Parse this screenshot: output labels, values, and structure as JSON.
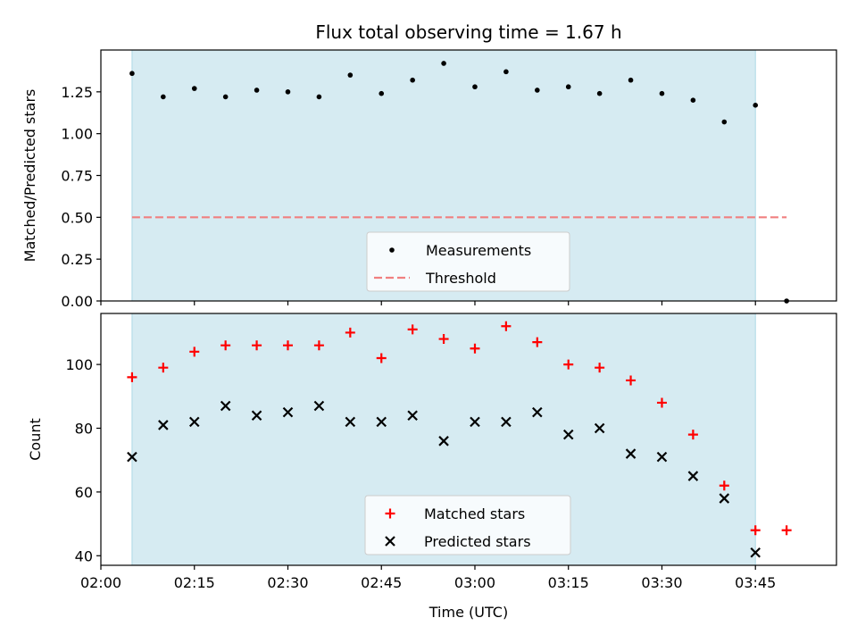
{
  "chart_data": {
    "title": "Flux total observing time = 1.67 h",
    "xlabel": "Time (UTC)",
    "x_ticks": [
      "02:00",
      "02:15",
      "02:30",
      "02:45",
      "03:00",
      "03:15",
      "03:30",
      "03:45"
    ],
    "x_tick_minutes": [
      0,
      15,
      30,
      45,
      60,
      75,
      90,
      105
    ],
    "xlim_minutes": [
      0,
      118
    ],
    "shaded_interval_minutes": [
      5,
      105
    ],
    "colors": {
      "shade": "#add8e6",
      "threshold": "#f08080",
      "matched": "#ff0000",
      "predicted": "#000000",
      "measurement": "#000000"
    },
    "panels": [
      {
        "type": "scatter",
        "ylabel": "Matched/Predicted stars",
        "ylim": [
          0,
          1.5
        ],
        "y_ticks": [
          "0.00",
          "0.25",
          "0.50",
          "0.75",
          "1.00",
          "1.25"
        ],
        "y_tick_values": [
          0,
          0.25,
          0.5,
          0.75,
          1.0,
          1.25
        ],
        "threshold": {
          "value": 0.5,
          "x_range_minutes": [
            5,
            110
          ]
        },
        "legend": {
          "position": "lower center",
          "entries": [
            "Measurements",
            "Threshold"
          ]
        },
        "series": [
          {
            "name": "Measurements",
            "marker": "dot",
            "x_minutes": [
              5,
              10,
              15,
              20,
              25,
              30,
              35,
              40,
              45,
              50,
              55,
              60,
              65,
              70,
              75,
              80,
              85,
              90,
              95,
              100,
              105,
              110
            ],
            "y": [
              1.36,
              1.22,
              1.27,
              1.22,
              1.26,
              1.25,
              1.22,
              1.35,
              1.24,
              1.32,
              1.42,
              1.28,
              1.37,
              1.26,
              1.28,
              1.24,
              1.32,
              1.24,
              1.2,
              1.07,
              1.17,
              0.0
            ]
          }
        ]
      },
      {
        "type": "scatter",
        "ylabel": "Count",
        "ylim": [
          37,
          116
        ],
        "y_ticks": [
          "40",
          "60",
          "80",
          "100"
        ],
        "y_tick_values": [
          40,
          60,
          80,
          100
        ],
        "legend": {
          "position": "lower center",
          "entries": [
            "Matched stars",
            "Predicted stars"
          ]
        },
        "series": [
          {
            "name": "Matched stars",
            "marker": "plus",
            "x_minutes": [
              5,
              10,
              15,
              20,
              25,
              30,
              35,
              40,
              45,
              50,
              55,
              60,
              65,
              70,
              75,
              80,
              85,
              90,
              95,
              100,
              105,
              110
            ],
            "y": [
              96,
              99,
              104,
              106,
              106,
              106,
              106,
              110,
              102,
              111,
              108,
              105,
              112,
              107,
              100,
              99,
              95,
              88,
              78,
              62,
              48,
              48
            ]
          },
          {
            "name": "Predicted stars",
            "marker": "x",
            "x_minutes": [
              5,
              10,
              15,
              20,
              25,
              30,
              35,
              40,
              45,
              50,
              55,
              60,
              65,
              70,
              75,
              80,
              85,
              90,
              95,
              100,
              105
            ],
            "y": [
              71,
              81,
              82,
              87,
              84,
              85,
              87,
              82,
              82,
              84,
              76,
              82,
              82,
              85,
              78,
              80,
              72,
              71,
              65,
              58,
              41
            ]
          }
        ]
      }
    ]
  }
}
